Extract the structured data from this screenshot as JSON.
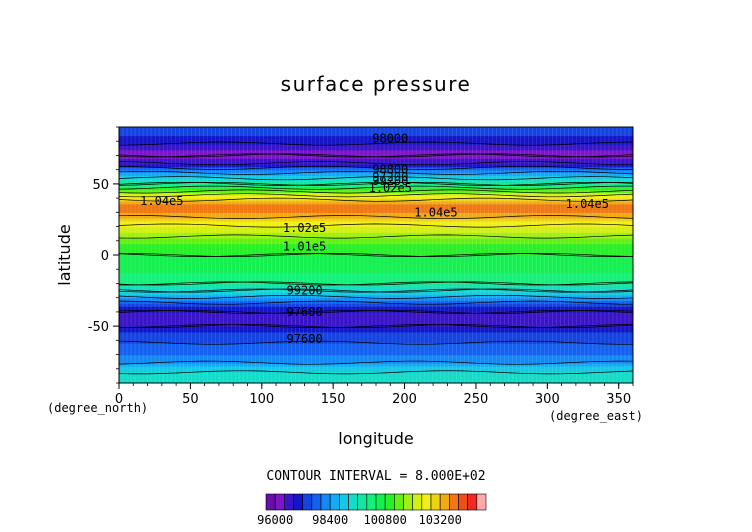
{
  "chart_data": {
    "type": "heatmap",
    "title": "surface pressure",
    "xlabel": "longitude",
    "ylabel": "latitude",
    "x_unit": "(degree_east)",
    "y_unit": "(degree_north)",
    "xlim": [
      0,
      360
    ],
    "ylim": [
      -90,
      90
    ],
    "x_ticks": [
      0,
      50,
      100,
      150,
      200,
      250,
      300,
      350
    ],
    "y_ticks": [
      50,
      0,
      -50
    ],
    "contour_interval_label": "CONTOUR INTERVAL = 8.000E+02",
    "colorbar": {
      "min": 95600,
      "step": 400,
      "tick_labels": [
        "96000",
        "98400",
        "100800",
        "103200"
      ],
      "colors": [
        "#6a0dad",
        "#7c14c8",
        "#3a14c8",
        "#1414c8",
        "#1444e0",
        "#1460f0",
        "#1488f5",
        "#14aaf5",
        "#14c8e6",
        "#14dcc8",
        "#14e6a0",
        "#14f078",
        "#14f050",
        "#28f028",
        "#64f014",
        "#a0f014",
        "#d2f014",
        "#f0f014",
        "#f0d214",
        "#f0aa14",
        "#f07814",
        "#f05014",
        "#f02828",
        "#ffaaaa"
      ]
    },
    "zonal_profile": {
      "lat": [
        -90,
        -85,
        -80,
        -75,
        -70,
        -65,
        -60,
        -55,
        -50,
        -45,
        -40,
        -35,
        -30,
        -25,
        -20,
        -15,
        -10,
        -5,
        0,
        5,
        10,
        15,
        20,
        25,
        30,
        35,
        40,
        45,
        50,
        55,
        60,
        65,
        70,
        75,
        80,
        85,
        90
      ],
      "pressure": [
        99400,
        99400,
        99000,
        98300,
        98000,
        97800,
        97500,
        97200,
        96800,
        96700,
        96800,
        97300,
        98300,
        99200,
        100000,
        100300,
        100500,
        100700,
        100800,
        101000,
        101300,
        101800,
        102300,
        103000,
        103600,
        103900,
        103000,
        101500,
        100000,
        99000,
        97900,
        96700,
        96000,
        96400,
        97000,
        97200,
        97200
      ]
    },
    "contour_labels": [
      "98000",
      "98800",
      "97200",
      "99200",
      "1.02e5",
      "1.04e5",
      "1.04e5",
      "1.04e5",
      "1.02e5",
      "1.01e5",
      "99200",
      "97600",
      "97600"
    ]
  }
}
